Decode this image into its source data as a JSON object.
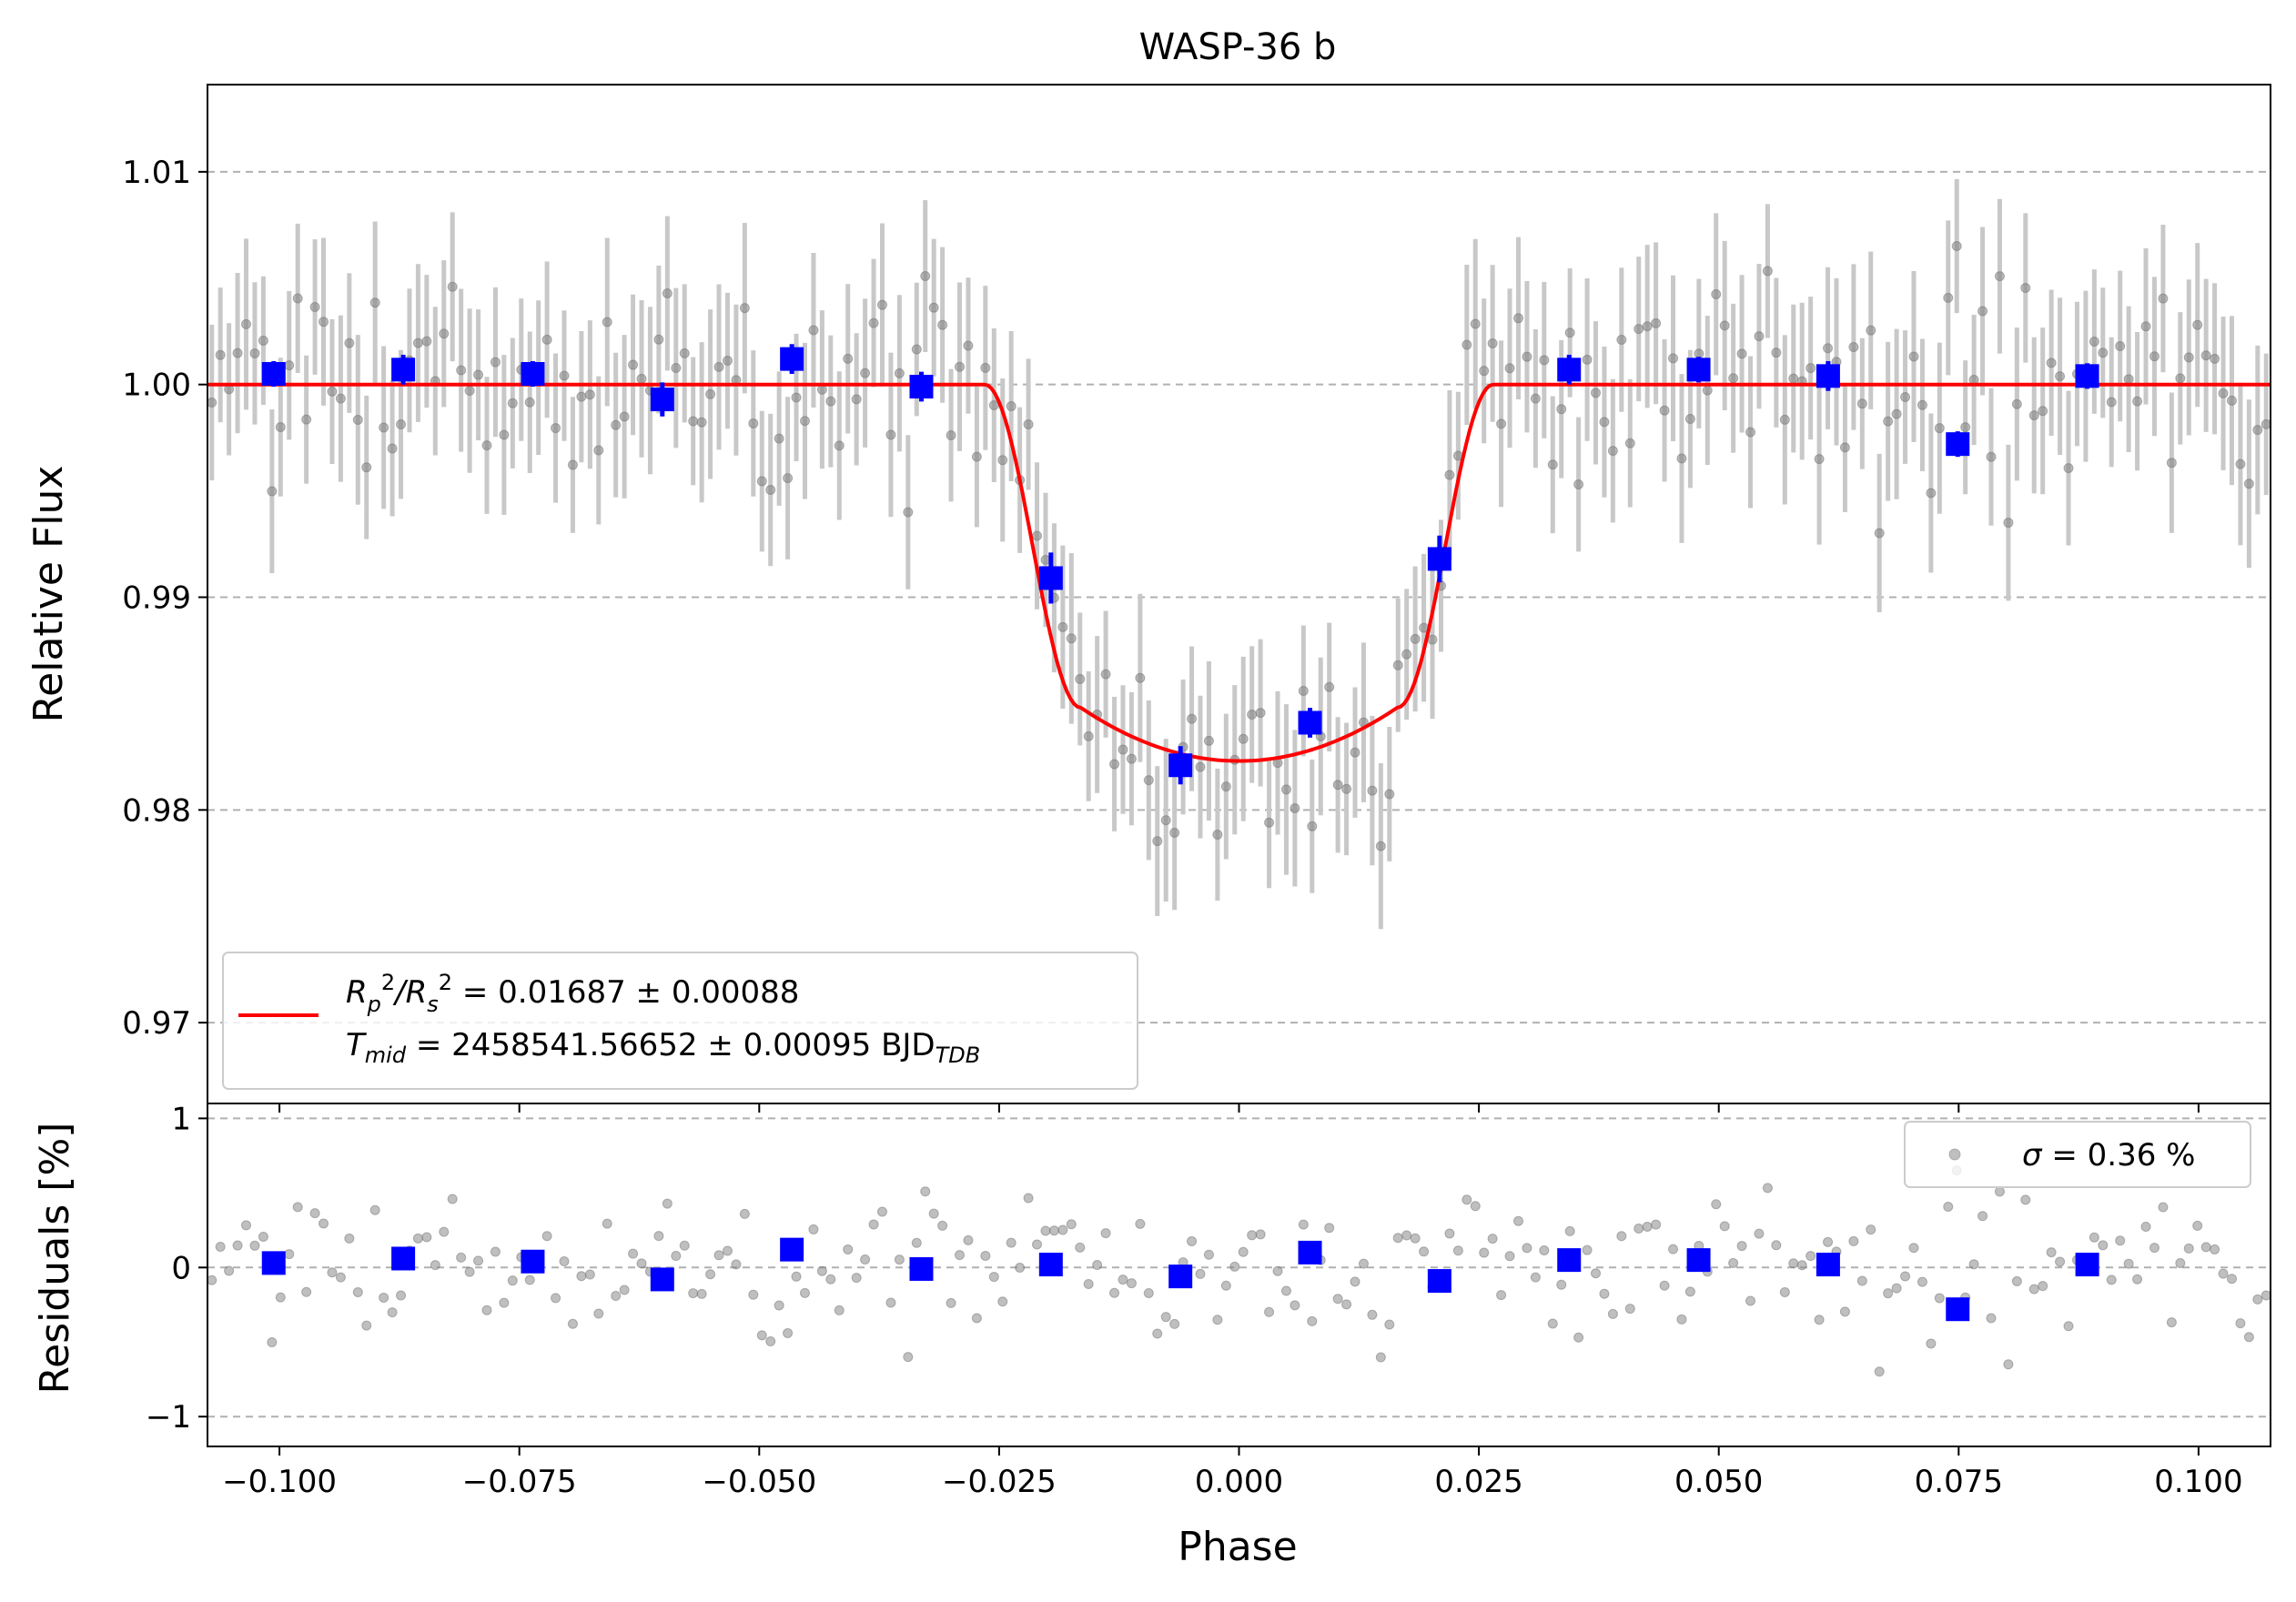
{
  "chart_data": {
    "type": "scatter",
    "title": "WASP-36 b",
    "xlabel": "Phase",
    "xlim": [
      -0.1075,
      0.1075
    ],
    "xticks": [
      -0.1,
      -0.075,
      -0.05,
      -0.025,
      0.0,
      0.025,
      0.05,
      0.075,
      0.1
    ],
    "xtick_labels": [
      "−0.100",
      "−0.075",
      "−0.050",
      "−0.025",
      "0.000",
      "0.025",
      "0.050",
      "0.075",
      "0.100"
    ],
    "top_panel": {
      "ylabel": "Relative Flux",
      "ylim": [
        0.9662,
        1.0141
      ],
      "yticks": [
        0.97,
        0.98,
        0.99,
        1.0,
        1.01
      ],
      "ytick_labels": [
        "0.97",
        "0.98",
        "0.99",
        "1.00",
        "1.01"
      ],
      "grid": "horizontal dashed",
      "model": {
        "name": "transit model",
        "color": "#ff0000",
        "baseline": 1.0,
        "depth_center": 0.9823,
        "t1": 0.0265,
        "t2": 0.0165,
        "x": [
          -0.1075,
          -0.0265,
          -0.024,
          -0.022,
          -0.02,
          -0.0185,
          -0.0175,
          -0.0165,
          -0.012,
          -0.008,
          -0.004,
          0.0,
          0.004,
          0.008,
          0.012,
          0.0165,
          0.0175,
          0.0185,
          0.02,
          0.022,
          0.024,
          0.0265,
          0.1075
        ],
        "y": [
          1.0,
          1.0,
          0.9965,
          0.9925,
          0.9885,
          0.9865,
          0.9855,
          0.9848,
          0.9835,
          0.9828,
          0.9824,
          0.9823,
          0.9824,
          0.9828,
          0.9835,
          0.9848,
          0.9855,
          0.9865,
          0.9885,
          0.9925,
          0.9965,
          1.0,
          1.0
        ]
      },
      "binned": {
        "name": "binned data",
        "color": "#0000ff",
        "x": [
          -0.1006,
          -0.0871,
          -0.0736,
          -0.0601,
          -0.0466,
          -0.0331,
          -0.0196,
          -0.0061,
          0.0074,
          0.0209,
          0.0344,
          0.0479,
          0.0614,
          0.0749,
          0.0884
        ],
        "y": [
          1.0005,
          1.0007,
          1.0005,
          0.9993,
          1.0012,
          0.9999,
          0.9909,
          0.9821,
          0.9841,
          0.9918,
          1.0007,
          1.0007,
          1.0004,
          0.9972,
          1.0004
        ],
        "yerr": [
          0.0006,
          0.0007,
          0.0006,
          0.0008,
          0.0007,
          0.0007,
          0.0012,
          0.0009,
          0.0007,
          0.0011,
          0.0007,
          0.0006,
          0.0007,
          0.0006,
          0.0006
        ]
      },
      "raw_point_count": 240,
      "raw_error": 0.0035,
      "raw_color": "#808080"
    },
    "bottom_panel": {
      "ylabel": "Residuals [%]",
      "ylim": [
        -1.2,
        1.1
      ],
      "yticks": [
        -1,
        0,
        1
      ],
      "ytick_labels": [
        "−1",
        "0",
        "1"
      ],
      "grid": "horizontal dashed",
      "binned_residuals": [
        0.03,
        0.06,
        0.04,
        -0.08,
        0.12,
        -0.01,
        0.02,
        -0.06,
        0.1,
        -0.09,
        0.05,
        0.05,
        0.02,
        -0.28,
        0.02
      ],
      "sigma_percent": 0.36
    },
    "legend_top": {
      "line1_prefix": "R",
      "line1_value": " = 0.01687 ± 0.00088",
      "line2_prefix": "T",
      "line2_sub": "mid",
      "line2_value": " = 2458541.56652 ± 0.00095 BJD",
      "line2_suffix": "TDB",
      "placement": "lower-left"
    },
    "legend_bottom": {
      "symbol": "σ",
      "text": " = 0.36 %",
      "placement": "upper-right"
    }
  }
}
